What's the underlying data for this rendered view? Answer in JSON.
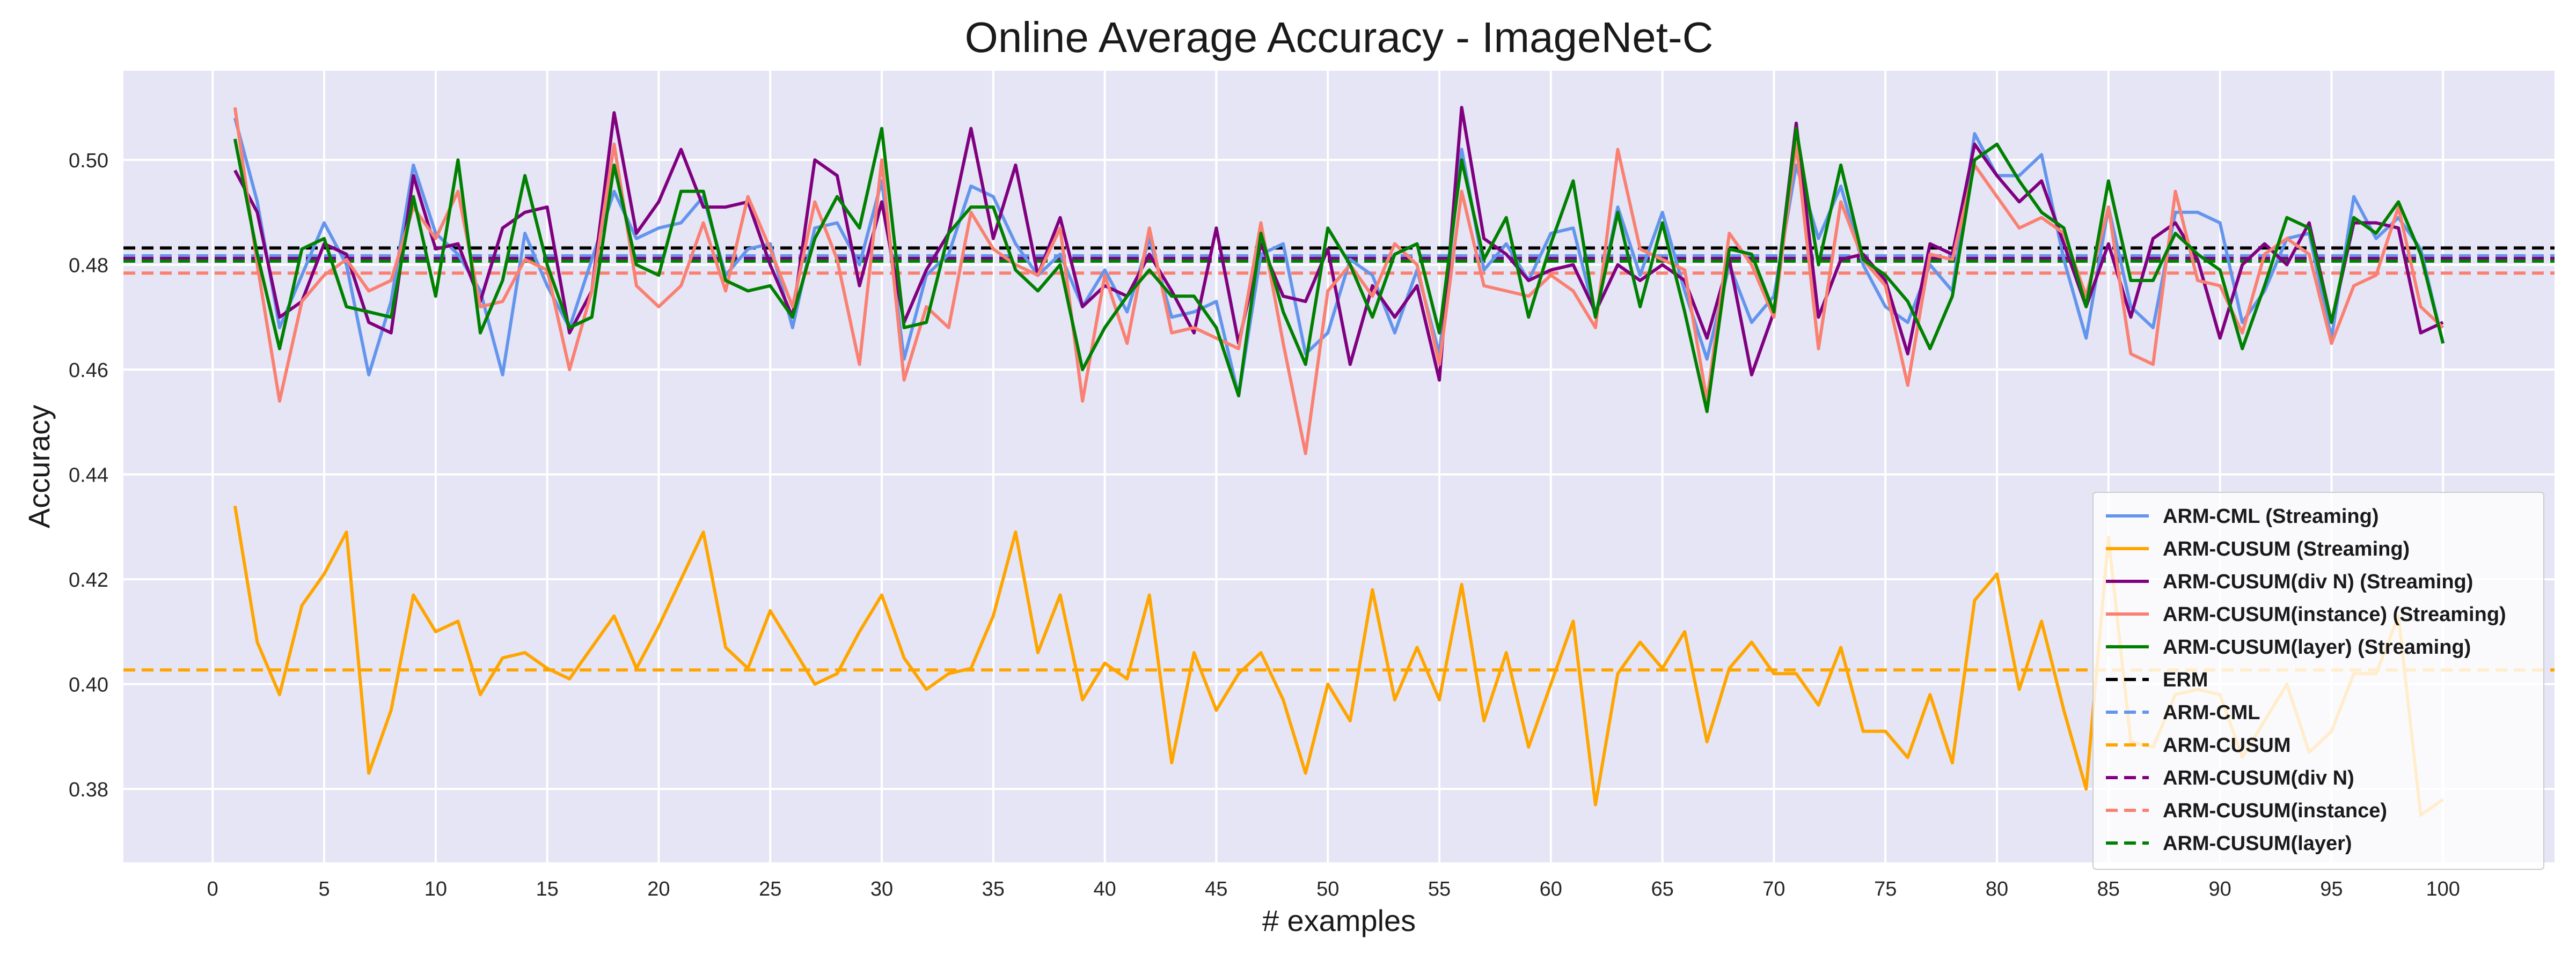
{
  "chart_data": {
    "type": "line",
    "title": "Online Average Accuracy - ImageNet-C",
    "xlabel": "# examples",
    "ylabel": "Accuracy",
    "xlim": [
      -4,
      105
    ],
    "ylim": [
      0.366,
      0.517
    ],
    "xticks": [
      0,
      5,
      10,
      15,
      20,
      25,
      30,
      35,
      40,
      45,
      50,
      55,
      60,
      65,
      70,
      75,
      80,
      85,
      90,
      95,
      100
    ],
    "yticks": [
      0.38,
      0.4,
      0.42,
      0.44,
      0.46,
      0.48,
      0.5
    ],
    "ytick_labels": [
      "0.38",
      "0.40",
      "0.42",
      "0.44",
      "0.46",
      "0.48",
      "0.50"
    ],
    "grid": true,
    "legend_position": "lower-right",
    "background_color": "#e5e5f5",
    "x": [
      1,
      2,
      3,
      4,
      5,
      6,
      7,
      8,
      9,
      10,
      11,
      12,
      13,
      14,
      15,
      16,
      17,
      18,
      19,
      20,
      21,
      22,
      23,
      24,
      25,
      26,
      27,
      28,
      29,
      30,
      31,
      32,
      33,
      34,
      35,
      36,
      37,
      38,
      39,
      40,
      41,
      42,
      43,
      44,
      45,
      46,
      47,
      48,
      49,
      50,
      51,
      52,
      53,
      54,
      55,
      56,
      57,
      58,
      59,
      60,
      61,
      62,
      63,
      64,
      65,
      66,
      67,
      68,
      69,
      70,
      71,
      72,
      73,
      74,
      75,
      76,
      77,
      78,
      79,
      80,
      81,
      82,
      83,
      84,
      85,
      86,
      87,
      88,
      89,
      90,
      91,
      92,
      93,
      94,
      95,
      96,
      97,
      98,
      99,
      100
    ],
    "series": [
      {
        "name": "ARM-CML (Streaming)",
        "color": "#6495ed",
        "style": "solid",
        "values": [
          0.508,
          0.492,
          0.468,
          0.478,
          0.488,
          0.48,
          0.459,
          0.473,
          0.499,
          0.486,
          0.482,
          0.475,
          0.459,
          0.486,
          0.476,
          0.468,
          0.481,
          0.494,
          0.485,
          0.487,
          0.488,
          0.493,
          0.478,
          0.483,
          0.484,
          0.468,
          0.487,
          0.488,
          0.48,
          0.496,
          0.462,
          0.478,
          0.482,
          0.495,
          0.493,
          0.484,
          0.478,
          0.482,
          0.472,
          0.479,
          0.471,
          0.485,
          0.47,
          0.471,
          0.473,
          0.455,
          0.482,
          0.484,
          0.463,
          0.467,
          0.481,
          0.478,
          0.467,
          0.479,
          0.463,
          0.502,
          0.479,
          0.484,
          0.477,
          0.486,
          0.487,
          0.47,
          0.491,
          0.478,
          0.49,
          0.475,
          0.462,
          0.48,
          0.469,
          0.474,
          0.499,
          0.485,
          0.495,
          0.48,
          0.472,
          0.469,
          0.48,
          0.475,
          0.505,
          0.497,
          0.497,
          0.501,
          0.481,
          0.466,
          0.491,
          0.472,
          0.468,
          0.49,
          0.49,
          0.488,
          0.469,
          0.475,
          0.485,
          0.486,
          0.466,
          0.493,
          0.485,
          0.489,
          0.483,
          0.465
        ]
      },
      {
        "name": "ARM-CUSUM (Streaming)",
        "color": "#ffa500",
        "style": "solid",
        "values": [
          0.434,
          0.408,
          0.398,
          0.415,
          0.421,
          0.429,
          0.383,
          0.395,
          0.417,
          0.41,
          0.412,
          0.398,
          0.405,
          0.406,
          0.403,
          0.401,
          0.407,
          0.413,
          0.403,
          0.411,
          0.42,
          0.429,
          0.407,
          0.403,
          0.414,
          0.407,
          0.4,
          0.402,
          0.41,
          0.417,
          0.405,
          0.399,
          0.402,
          0.403,
          0.413,
          0.429,
          0.406,
          0.417,
          0.397,
          0.404,
          0.401,
          0.417,
          0.385,
          0.406,
          0.395,
          0.402,
          0.406,
          0.397,
          0.383,
          0.4,
          0.393,
          0.418,
          0.397,
          0.407,
          0.397,
          0.419,
          0.393,
          0.406,
          0.388,
          0.4,
          0.412,
          0.377,
          0.402,
          0.408,
          0.403,
          0.41,
          0.389,
          0.403,
          0.408,
          0.402,
          0.402,
          0.396,
          0.407,
          0.391,
          0.391,
          0.386,
          0.398,
          0.385,
          0.416,
          0.421,
          0.399,
          0.412,
          0.395,
          0.38,
          0.428,
          0.389,
          0.388,
          0.398,
          0.399,
          0.398,
          0.386,
          0.393,
          0.4,
          0.387,
          0.391,
          0.402,
          0.402,
          0.413,
          0.375,
          0.378
        ]
      },
      {
        "name": "ARM-CUSUM(div N) (Streaming)",
        "color": "#800080",
        "style": "solid",
        "values": [
          0.498,
          0.49,
          0.47,
          0.473,
          0.484,
          0.482,
          0.469,
          0.467,
          0.497,
          0.483,
          0.484,
          0.473,
          0.487,
          0.49,
          0.491,
          0.467,
          0.475,
          0.509,
          0.486,
          0.492,
          0.502,
          0.491,
          0.491,
          0.492,
          0.48,
          0.47,
          0.5,
          0.497,
          0.476,
          0.492,
          0.469,
          0.479,
          0.486,
          0.506,
          0.485,
          0.499,
          0.478,
          0.489,
          0.472,
          0.476,
          0.474,
          0.482,
          0.475,
          0.467,
          0.487,
          0.465,
          0.484,
          0.474,
          0.473,
          0.483,
          0.461,
          0.476,
          0.47,
          0.476,
          0.458,
          0.51,
          0.485,
          0.482,
          0.477,
          0.479,
          0.48,
          0.471,
          0.48,
          0.477,
          0.48,
          0.477,
          0.466,
          0.481,
          0.459,
          0.471,
          0.507,
          0.47,
          0.481,
          0.482,
          0.477,
          0.463,
          0.484,
          0.482,
          0.503,
          0.497,
          0.492,
          0.496,
          0.484,
          0.472,
          0.484,
          0.47,
          0.485,
          0.488,
          0.481,
          0.466,
          0.48,
          0.484,
          0.48,
          0.488,
          0.469,
          0.488,
          0.488,
          0.487,
          0.467,
          0.469
        ]
      },
      {
        "name": "ARM-CUSUM(instance) (Streaming)",
        "color": "#fa8072",
        "style": "solid",
        "values": [
          0.51,
          0.48,
          0.454,
          0.473,
          0.478,
          0.481,
          0.475,
          0.477,
          0.491,
          0.485,
          0.494,
          0.472,
          0.473,
          0.481,
          0.479,
          0.46,
          0.475,
          0.503,
          0.476,
          0.472,
          0.476,
          0.488,
          0.475,
          0.493,
          0.483,
          0.472,
          0.492,
          0.481,
          0.461,
          0.5,
          0.458,
          0.472,
          0.468,
          0.49,
          0.483,
          0.48,
          0.478,
          0.487,
          0.454,
          0.478,
          0.465,
          0.487,
          0.467,
          0.468,
          0.466,
          0.464,
          0.488,
          0.465,
          0.444,
          0.475,
          0.48,
          0.474,
          0.484,
          0.48,
          0.461,
          0.494,
          0.476,
          0.475,
          0.474,
          0.478,
          0.475,
          0.468,
          0.502,
          0.483,
          0.481,
          0.479,
          0.454,
          0.486,
          0.48,
          0.47,
          0.503,
          0.464,
          0.492,
          0.481,
          0.476,
          0.457,
          0.482,
          0.481,
          0.499,
          0.493,
          0.487,
          0.489,
          0.486,
          0.474,
          0.491,
          0.463,
          0.461,
          0.494,
          0.477,
          0.476,
          0.467,
          0.482,
          0.485,
          0.482,
          0.465,
          0.476,
          0.478,
          0.491,
          0.472,
          0.468
        ]
      },
      {
        "name": "ARM-CUSUM(layer) (Streaming)",
        "color": "#008000",
        "style": "solid",
        "values": [
          0.504,
          0.482,
          0.464,
          0.483,
          0.485,
          0.472,
          0.471,
          0.47,
          0.493,
          0.474,
          0.5,
          0.467,
          0.477,
          0.497,
          0.48,
          0.468,
          0.47,
          0.499,
          0.48,
          0.478,
          0.494,
          0.494,
          0.477,
          0.475,
          0.476,
          0.47,
          0.485,
          0.493,
          0.487,
          0.506,
          0.468,
          0.469,
          0.486,
          0.491,
          0.491,
          0.479,
          0.475,
          0.48,
          0.46,
          0.468,
          0.474,
          0.479,
          0.474,
          0.474,
          0.468,
          0.455,
          0.486,
          0.471,
          0.461,
          0.487,
          0.48,
          0.47,
          0.482,
          0.484,
          0.467,
          0.5,
          0.481,
          0.489,
          0.47,
          0.484,
          0.496,
          0.47,
          0.49,
          0.472,
          0.488,
          0.471,
          0.452,
          0.483,
          0.482,
          0.471,
          0.506,
          0.48,
          0.499,
          0.481,
          0.478,
          0.473,
          0.464,
          0.474,
          0.5,
          0.503,
          0.496,
          0.49,
          0.487,
          0.472,
          0.496,
          0.477,
          0.477,
          0.486,
          0.482,
          0.479,
          0.464,
          0.476,
          0.489,
          0.487,
          0.469,
          0.489,
          0.486,
          0.492,
          0.482,
          0.465
        ]
      }
    ],
    "reference_lines": [
      {
        "name": "ERM",
        "color": "#000000",
        "style": "dashed",
        "value": 0.4832
      },
      {
        "name": "ARM-CML",
        "color": "#6495ed",
        "style": "dashed",
        "value": 0.4817
      },
      {
        "name": "ARM-CUSUM",
        "color": "#ffa500",
        "style": "dashed",
        "value": 0.4027
      },
      {
        "name": "ARM-CUSUM(div N)",
        "color": "#800080",
        "style": "dashed",
        "value": 0.4812
      },
      {
        "name": "ARM-CUSUM(instance)",
        "color": "#fa8072",
        "style": "dashed",
        "value": 0.4784
      },
      {
        "name": "ARM-CUSUM(layer)",
        "color": "#008000",
        "style": "dashed",
        "value": 0.4807
      }
    ]
  }
}
